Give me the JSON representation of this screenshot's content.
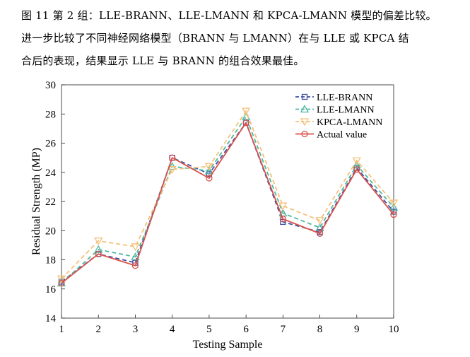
{
  "caption": {
    "line1": "图 11  第 2 组：LLE-BRANN、LLE-LMANN 和 KPCA-LMANN 模型的偏差比较。",
    "line2": "进一步比较了不同神经网络模型（BRANN 与 LMANN）在与 LLE 或 KPCA 结",
    "line3": "合后的表现，结果显示 LLE 与 BRANN 的组合效果最佳。"
  },
  "chart_data": {
    "type": "line",
    "xlabel": "Testing Sample",
    "ylabel": "Residual Strength (MP)",
    "x": [
      1,
      2,
      3,
      4,
      5,
      6,
      7,
      8,
      9,
      10
    ],
    "xlim": [
      1,
      10
    ],
    "ylim": [
      14,
      30
    ],
    "xticks": [
      "1",
      "2",
      "3",
      "4",
      "5",
      "6",
      "7",
      "8",
      "9",
      "10"
    ],
    "yticks": [
      "14",
      "16",
      "18",
      "20",
      "22",
      "24",
      "26",
      "28",
      "30"
    ],
    "grid": false,
    "legend_position": "top-right",
    "series": [
      {
        "name": "LLE-BRANN",
        "color": "#3f4fa6",
        "marker": "square",
        "dash": true,
        "values": [
          16.5,
          18.4,
          17.8,
          25.0,
          23.9,
          27.4,
          20.6,
          19.9,
          24.3,
          21.3
        ]
      },
      {
        "name": "LLE-LMANN",
        "color": "#4fb8a3",
        "marker": "triangle-up",
        "dash": true,
        "values": [
          16.4,
          18.7,
          18.2,
          24.4,
          24.1,
          27.8,
          21.2,
          20.2,
          24.5,
          21.6
        ]
      },
      {
        "name": "KPCA-LMANN",
        "color": "#f5c179",
        "marker": "triangle-down",
        "dash": true,
        "values": [
          16.7,
          19.3,
          18.9,
          24.2,
          24.4,
          28.2,
          21.7,
          20.7,
          24.8,
          21.9
        ]
      },
      {
        "name": "Actual value",
        "color": "#d9534a",
        "marker": "circle",
        "dash": false,
        "values": [
          16.4,
          18.4,
          17.6,
          25.0,
          23.6,
          27.4,
          20.8,
          19.8,
          24.2,
          21.1
        ]
      }
    ]
  }
}
